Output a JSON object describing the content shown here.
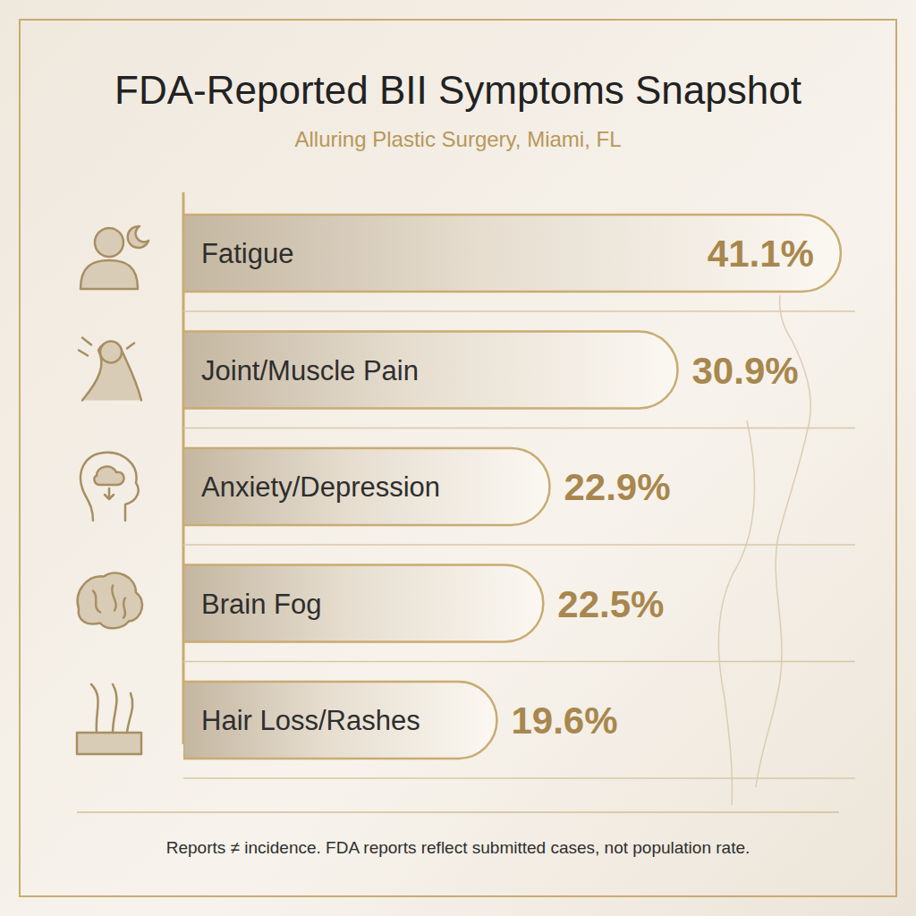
{
  "chart_data": {
    "type": "bar",
    "title": "FDA-Reported BII Symptoms Snapshot",
    "subtitle": "Alluring Plastic Surgery, Miami, FL",
    "categories": [
      "Fatigue",
      "Joint/Muscle Pain",
      "Anxiety/Depression",
      "Brain Fog",
      "Hair Loss/Rashes"
    ],
    "values": [
      41.1,
      30.9,
      22.9,
      22.5,
      19.6
    ],
    "value_labels": [
      "41.1%",
      "30.9%",
      "22.9%",
      "22.5%",
      "19.6%"
    ],
    "orientation": "horizontal",
    "data_labels": true,
    "tick_labels": false,
    "grid": false,
    "xlim": [
      0,
      42
    ],
    "annotations": [
      "Reports ≠ incidence. FDA reports reflect submitted cases, not population rate."
    ]
  }
}
